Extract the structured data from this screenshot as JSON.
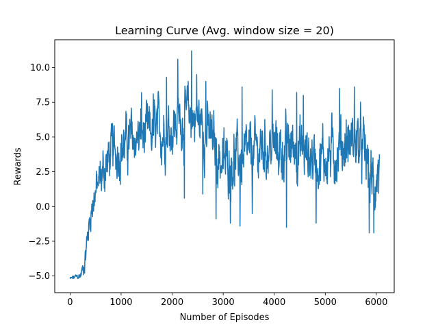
{
  "chart_data": {
    "type": "line",
    "title": "Learning Curve (Avg. window size = 20)",
    "xlabel": "Number of Episodes",
    "ylabel": "Rewards",
    "xlim": [
      -300,
      6350
    ],
    "ylim": [
      -6.2,
      12.0
    ],
    "xticks": [
      0,
      1000,
      2000,
      3000,
      4000,
      5000,
      6000
    ],
    "xtick_labels": [
      "0",
      "1000",
      "2000",
      "3000",
      "4000",
      "5000",
      "6000"
    ],
    "yticks": [
      -5.0,
      -2.5,
      0.0,
      2.5,
      5.0,
      7.5,
      10.0
    ],
    "ytick_labels": [
      "−5.0",
      "−2.5",
      "0.0",
      "2.5",
      "5.0",
      "7.5",
      "10.0"
    ],
    "grid": false,
    "series": [
      {
        "color": "#1f77b4",
        "x_start": 0,
        "x_end": 6060,
        "anchors": [
          [
            0,
            -5.2
          ],
          [
            100,
            -5.1
          ],
          [
            200,
            -5.0
          ],
          [
            250,
            -4.5
          ],
          [
            300,
            -3.5
          ],
          [
            350,
            -2.0
          ],
          [
            400,
            -0.5
          ],
          [
            450,
            0.5
          ],
          [
            500,
            1.0
          ],
          [
            600,
            2.0
          ],
          [
            700,
            3.0
          ],
          [
            800,
            3.8
          ],
          [
            900,
            4.0
          ],
          [
            1000,
            4.3
          ],
          [
            1200,
            4.8
          ],
          [
            1400,
            5.0
          ],
          [
            1600,
            5.2
          ],
          [
            1800,
            5.5
          ],
          [
            2000,
            5.8
          ],
          [
            2200,
            6.3
          ],
          [
            2400,
            6.5
          ],
          [
            2600,
            6.0
          ],
          [
            2800,
            4.5
          ],
          [
            3000,
            3.0
          ],
          [
            3200,
            3.5
          ],
          [
            3400,
            3.2
          ],
          [
            3600,
            3.8
          ],
          [
            3800,
            4.3
          ],
          [
            4000,
            4.3
          ],
          [
            4200,
            4.0
          ],
          [
            4400,
            4.5
          ],
          [
            4600,
            3.8
          ],
          [
            4800,
            3.5
          ],
          [
            5000,
            3.5
          ],
          [
            5200,
            4.0
          ],
          [
            5400,
            4.5
          ],
          [
            5600,
            4.8
          ],
          [
            5800,
            3.5
          ],
          [
            5900,
            1.5
          ],
          [
            6000,
            2.0
          ],
          [
            6060,
            3.0
          ]
        ],
        "noise": [
          [
            0,
            0.15
          ],
          [
            200,
            0.3
          ],
          [
            300,
            1.0
          ],
          [
            500,
            1.6
          ],
          [
            700,
            2.0
          ],
          [
            1000,
            2.0
          ],
          [
            2000,
            2.2
          ],
          [
            2800,
            2.3
          ],
          [
            4000,
            2.2
          ],
          [
            5000,
            2.3
          ],
          [
            6060,
            2.4
          ]
        ],
        "peaks": [
          [
            2380,
            11.2
          ],
          [
            2110,
            10.6
          ],
          [
            1890,
            9.3
          ],
          [
            2480,
            9.5
          ],
          [
            2660,
            9.0
          ],
          [
            3370,
            8.6
          ],
          [
            3960,
            8.4
          ],
          [
            5280,
            8.5
          ],
          [
            5570,
            8.6
          ],
          [
            4440,
            8.2
          ],
          [
            1400,
            8.2
          ],
          [
            1630,
            8.1
          ],
          [
            4570,
            8.0
          ]
        ],
        "troughs": [
          [
            2240,
            0.6
          ],
          [
            2600,
            0.9
          ],
          [
            3140,
            -1.2
          ],
          [
            3330,
            -1.4
          ],
          [
            4240,
            -1.5
          ],
          [
            4820,
            -1.2
          ],
          [
            5860,
            -1.9
          ],
          [
            5950,
            -1.9
          ],
          [
            3570,
            -0.5
          ],
          [
            2860,
            -0.9
          ]
        ]
      }
    ]
  }
}
